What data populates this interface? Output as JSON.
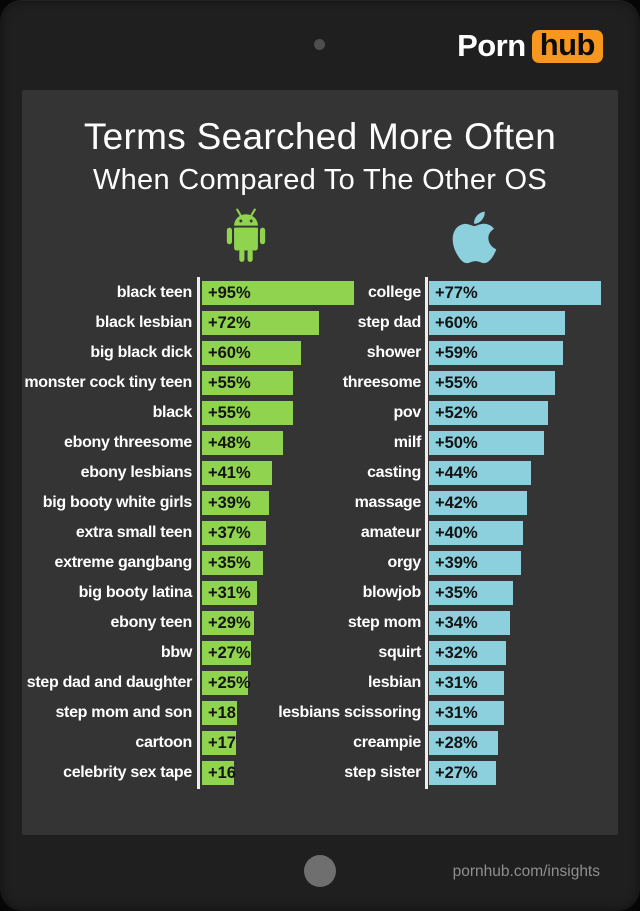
{
  "header": {
    "logo": {
      "part1": "Porn",
      "part2": "hub"
    }
  },
  "title": {
    "line1": "Terms Searched More Often",
    "line2": "When Compared To The Other OS"
  },
  "footer": {
    "url": "pornhub.com/insights"
  },
  "colors": {
    "android_green": "#8fd34f",
    "apple_blue": "#8ccfdd",
    "logo_orange": "#f7971d",
    "frame_bg": "#1f1f1f",
    "panel_bg": "#343434",
    "axis_line": "#ededed",
    "bar_value_text": "#141414",
    "label_text": "#ffffff"
  },
  "chart_data": {
    "type": "bar",
    "orientation": "horizontal",
    "title": "Terms Searched More Often",
    "subtitle": "When Compared To The Other OS",
    "value_unit": "percent searched more often vs the other OS",
    "legend_position": "column icons above bars",
    "grid": false,
    "columns": [
      {
        "name": "android",
        "icon": "android-icon",
        "color": "#8fd34f",
        "axis_range": [
          0,
          95
        ],
        "items": [
          {
            "term": "black teen",
            "value": 95,
            "label": "+95%"
          },
          {
            "term": "black lesbian",
            "value": 72,
            "label": "+72%"
          },
          {
            "term": "big black dick",
            "value": 60,
            "label": "+60%"
          },
          {
            "term": "monster cock tiny teen",
            "value": 55,
            "label": "+55%"
          },
          {
            "term": "black",
            "value": 55,
            "label": "+55%"
          },
          {
            "term": "ebony threesome",
            "value": 48,
            "label": "+48%"
          },
          {
            "term": "ebony lesbians",
            "value": 41,
            "label": "+41%"
          },
          {
            "term": "big booty white girls",
            "value": 39,
            "label": "+39%"
          },
          {
            "term": "extra small teen",
            "value": 37,
            "label": "+37%"
          },
          {
            "term": "extreme gangbang",
            "value": 35,
            "label": "+35%"
          },
          {
            "term": "big booty latina",
            "value": 31,
            "label": "+31%"
          },
          {
            "term": "ebony teen",
            "value": 29,
            "label": "+29%"
          },
          {
            "term": "bbw",
            "value": 27,
            "label": "+27%"
          },
          {
            "term": "step dad and daughter",
            "value": 25,
            "label": "+25%"
          },
          {
            "term": "step mom and son",
            "value": 18,
            "label": "+18"
          },
          {
            "term": "cartoon",
            "value": 17,
            "label": "+17"
          },
          {
            "term": "celebrity sex tape",
            "value": 16,
            "label": "+16"
          }
        ]
      },
      {
        "name": "apple",
        "icon": "apple-icon",
        "color": "#8ccfdd",
        "axis_range": [
          0,
          77
        ],
        "items": [
          {
            "term": "college",
            "value": 77,
            "label": "+77%"
          },
          {
            "term": "step dad",
            "value": 60,
            "label": "+60%"
          },
          {
            "term": "shower",
            "value": 59,
            "label": "+59%"
          },
          {
            "term": "threesome",
            "value": 55,
            "label": "+55%"
          },
          {
            "term": "pov",
            "value": 52,
            "label": "+52%"
          },
          {
            "term": "milf",
            "value": 50,
            "label": "+50%"
          },
          {
            "term": "casting",
            "value": 44,
            "label": "+44%"
          },
          {
            "term": "massage",
            "value": 42,
            "label": "+42%"
          },
          {
            "term": "amateur",
            "value": 40,
            "label": "+40%"
          },
          {
            "term": "orgy",
            "value": 39,
            "label": "+39%"
          },
          {
            "term": "blowjob",
            "value": 35,
            "label": "+35%"
          },
          {
            "term": "step mom",
            "value": 34,
            "label": "+34%"
          },
          {
            "term": "squirt",
            "value": 32,
            "label": "+32%"
          },
          {
            "term": "lesbian",
            "value": 31,
            "label": "+31%"
          },
          {
            "term": "lesbians scissoring",
            "value": 31,
            "label": "+31%"
          },
          {
            "term": "creampie",
            "value": 28,
            "label": "+28%"
          },
          {
            "term": "step sister",
            "value": 27,
            "label": "+27%"
          }
        ]
      }
    ]
  }
}
